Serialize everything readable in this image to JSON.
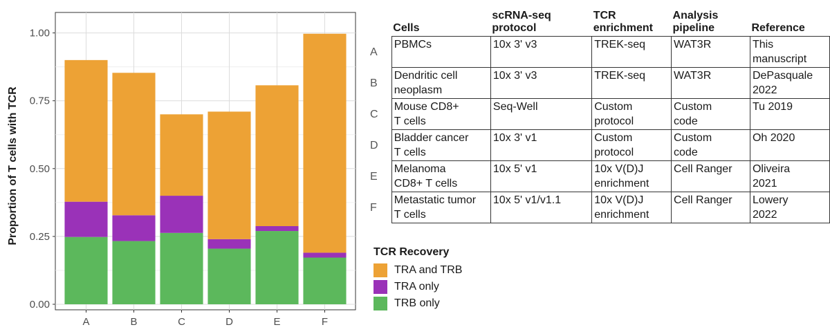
{
  "chart_data": {
    "type": "bar",
    "stacked": true,
    "categories": [
      "A",
      "B",
      "C",
      "D",
      "E",
      "F"
    ],
    "series": [
      {
        "name": "TRB only",
        "color": "#5cb85c",
        "values": [
          0.248,
          0.233,
          0.263,
          0.205,
          0.27,
          0.172
        ]
      },
      {
        "name": "TRA only",
        "color": "#9a32b8",
        "values": [
          0.13,
          0.095,
          0.137,
          0.035,
          0.018,
          0.018
        ]
      },
      {
        "name": "TRA and TRB",
        "color": "#eda235",
        "values": [
          0.522,
          0.525,
          0.3,
          0.47,
          0.519,
          0.807
        ]
      }
    ],
    "ylabel": "Proportion of T cells with TCR",
    "xlabel": "",
    "ylim": [
      0,
      1.05
    ],
    "yticks": [
      "0.00",
      "0.25",
      "0.50",
      "0.75",
      "1.00"
    ],
    "grid": true,
    "legend_title": "TCR Recovery",
    "legend_items": [
      "TRA and TRB",
      "TRA only",
      "TRB only"
    ],
    "legend_position": "bottom-right"
  },
  "table": {
    "headers": [
      [
        "Cells"
      ],
      [
        "scRNA-seq",
        "protocol"
      ],
      [
        "TCR",
        "enrichment"
      ],
      [
        "Analysis",
        "pipeline"
      ],
      [
        "Reference"
      ]
    ],
    "rows": [
      {
        "label": "A",
        "cells": [
          [
            "PBMCs"
          ],
          [
            "10x 3' v3"
          ],
          [
            "TREK-seq"
          ],
          [
            "WAT3R"
          ],
          [
            "This",
            "manuscript"
          ]
        ]
      },
      {
        "label": "B",
        "cells": [
          [
            "Dendritic cell",
            "neoplasm"
          ],
          [
            "10x 3' v3"
          ],
          [
            "TREK-seq"
          ],
          [
            "WAT3R"
          ],
          [
            "DePasquale",
            "2022"
          ]
        ]
      },
      {
        "label": "C",
        "cells": [
          [
            "Mouse CD8+",
            "T cells"
          ],
          [
            "Seq-Well"
          ],
          [
            "Custom",
            "protocol"
          ],
          [
            "Custom",
            "code"
          ],
          [
            "Tu 2019"
          ]
        ]
      },
      {
        "label": "D",
        "cells": [
          [
            "Bladder cancer",
            "T cells"
          ],
          [
            "10x 3' v1"
          ],
          [
            "Custom",
            "protocol"
          ],
          [
            "Custom",
            "code"
          ],
          [
            "Oh 2020"
          ]
        ]
      },
      {
        "label": "E",
        "cells": [
          [
            "Melanoma",
            "CD8+ T cells"
          ],
          [
            "10x 5' v1"
          ],
          [
            "10x V(D)J",
            "enrichment"
          ],
          [
            "Cell Ranger"
          ],
          [
            "Oliveira",
            "2021"
          ]
        ]
      },
      {
        "label": "F",
        "cells": [
          [
            "Metastatic tumor",
            "T cells"
          ],
          [
            "10x 5' v1/v1.1"
          ],
          [
            "10x V(D)J",
            "enrichment"
          ],
          [
            "Cell Ranger"
          ],
          [
            "Lowery",
            "2022"
          ]
        ]
      }
    ]
  }
}
